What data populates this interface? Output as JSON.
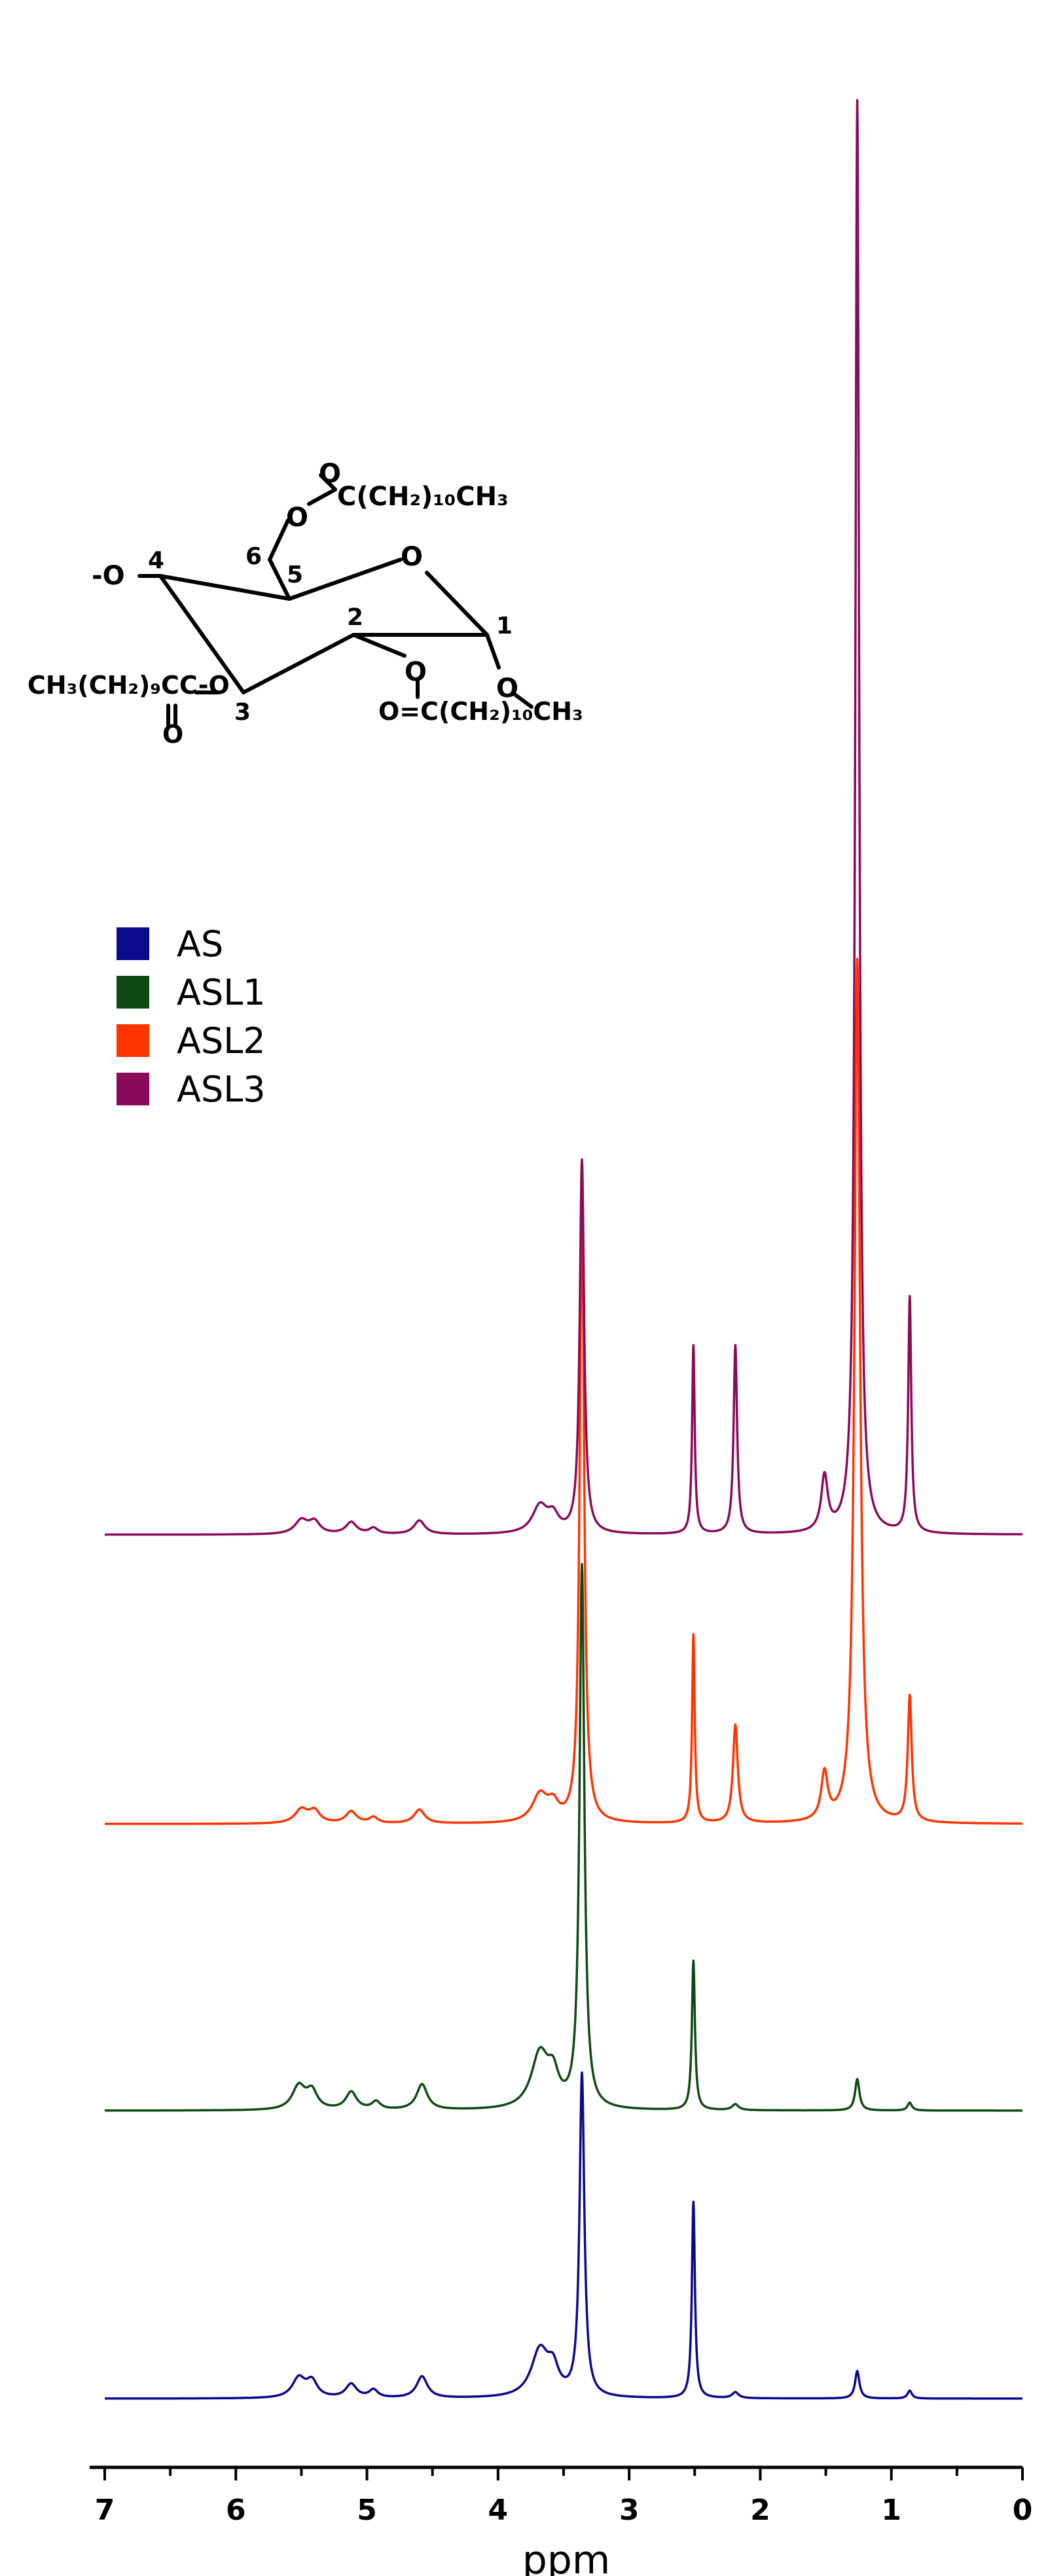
{
  "chart_data": {
    "type": "line",
    "title": "",
    "xlabel": "ppm",
    "ylabel": "",
    "xlim": [
      7.0,
      0.0
    ],
    "x_reversed": true,
    "grid": false,
    "legend_position": "top-left",
    "x_ticks": [
      "7",
      "6",
      "5",
      "4",
      "3",
      "2",
      "1",
      "0"
    ],
    "series": [
      {
        "name": "AS",
        "color": "#0a0a8c",
        "peaks": [
          {
            "ppm": 5.52,
            "height": 0.05,
            "width": 0.06
          },
          {
            "ppm": 5.42,
            "height": 0.04,
            "width": 0.05
          },
          {
            "ppm": 5.12,
            "height": 0.035,
            "width": 0.05
          },
          {
            "ppm": 4.95,
            "height": 0.02,
            "width": 0.04
          },
          {
            "ppm": 4.58,
            "height": 0.055,
            "width": 0.05
          },
          {
            "ppm": 3.68,
            "height": 0.12,
            "width": 0.08
          },
          {
            "ppm": 3.58,
            "height": 0.06,
            "width": 0.05
          },
          {
            "ppm": 3.36,
            "height": 0.82,
            "width": 0.022
          },
          {
            "ppm": 2.51,
            "height": 0.5,
            "width": 0.014
          },
          {
            "ppm": 2.19,
            "height": 0.015,
            "width": 0.03
          },
          {
            "ppm": 1.26,
            "height": 0.07,
            "width": 0.02
          },
          {
            "ppm": 0.86,
            "height": 0.02,
            "width": 0.02
          }
        ]
      },
      {
        "name": "ASL1",
        "color": "#0f4a14",
        "peaks": [
          {
            "ppm": 5.52,
            "height": 0.06,
            "width": 0.06
          },
          {
            "ppm": 5.42,
            "height": 0.045,
            "width": 0.05
          },
          {
            "ppm": 5.12,
            "height": 0.045,
            "width": 0.05
          },
          {
            "ppm": 4.93,
            "height": 0.02,
            "width": 0.04
          },
          {
            "ppm": 4.58,
            "height": 0.065,
            "width": 0.05
          },
          {
            "ppm": 3.68,
            "height": 0.14,
            "width": 0.08
          },
          {
            "ppm": 3.58,
            "height": 0.07,
            "width": 0.05
          },
          {
            "ppm": 3.36,
            "height": 1.38,
            "width": 0.022
          },
          {
            "ppm": 2.51,
            "height": 0.38,
            "width": 0.014
          },
          {
            "ppm": 2.19,
            "height": 0.015,
            "width": 0.03
          },
          {
            "ppm": 1.26,
            "height": 0.08,
            "width": 0.02
          },
          {
            "ppm": 0.86,
            "height": 0.02,
            "width": 0.02
          }
        ]
      },
      {
        "name": "ASL2",
        "color": "#ff3300",
        "peaks": [
          {
            "ppm": 5.5,
            "height": 0.035,
            "width": 0.06
          },
          {
            "ppm": 5.4,
            "height": 0.03,
            "width": 0.05
          },
          {
            "ppm": 5.12,
            "height": 0.03,
            "width": 0.05
          },
          {
            "ppm": 4.95,
            "height": 0.015,
            "width": 0.04
          },
          {
            "ppm": 4.6,
            "height": 0.035,
            "width": 0.05
          },
          {
            "ppm": 3.68,
            "height": 0.07,
            "width": 0.07
          },
          {
            "ppm": 3.58,
            "height": 0.04,
            "width": 0.05
          },
          {
            "ppm": 3.36,
            "height": 1.6,
            "width": 0.02
          },
          {
            "ppm": 2.51,
            "height": 0.48,
            "width": 0.012
          },
          {
            "ppm": 2.19,
            "height": 0.25,
            "width": 0.022
          },
          {
            "ppm": 1.51,
            "height": 0.12,
            "width": 0.03
          },
          {
            "ppm": 1.26,
            "height": 2.2,
            "width": 0.025
          },
          {
            "ppm": 0.86,
            "height": 0.32,
            "width": 0.018
          }
        ]
      },
      {
        "name": "ASL3",
        "color": "#8b0a5a",
        "peaks": [
          {
            "ppm": 5.5,
            "height": 0.035,
            "width": 0.06
          },
          {
            "ppm": 5.4,
            "height": 0.03,
            "width": 0.05
          },
          {
            "ppm": 5.12,
            "height": 0.03,
            "width": 0.05
          },
          {
            "ppm": 4.95,
            "height": 0.015,
            "width": 0.04
          },
          {
            "ppm": 4.6,
            "height": 0.035,
            "width": 0.05
          },
          {
            "ppm": 3.68,
            "height": 0.07,
            "width": 0.07
          },
          {
            "ppm": 3.58,
            "height": 0.04,
            "width": 0.05
          },
          {
            "ppm": 3.36,
            "height": 0.95,
            "width": 0.02
          },
          {
            "ppm": 2.51,
            "height": 0.48,
            "width": 0.012
          },
          {
            "ppm": 2.19,
            "height": 0.48,
            "width": 0.016
          },
          {
            "ppm": 1.51,
            "height": 0.14,
            "width": 0.03
          },
          {
            "ppm": 1.26,
            "height": 3.65,
            "width": 0.018
          },
          {
            "ppm": 0.86,
            "height": 0.6,
            "width": 0.014
          }
        ]
      }
    ]
  },
  "structure": {
    "top_o": "O",
    "top_chain": "C(CH₂)₁₀CH₃",
    "ester_o_6": "O",
    "ring_o": "O",
    "ester_o_4": "-O",
    "left_chain": "CH₃(CH₂)₉CC-O",
    "left_o": "O",
    "ester_o_2": "O",
    "ester_o_1": "O",
    "bottom_chain": "O=C(CH₂)₁₀CH₃",
    "labels": [
      "1",
      "2",
      "3",
      "4",
      "5",
      "6"
    ]
  }
}
